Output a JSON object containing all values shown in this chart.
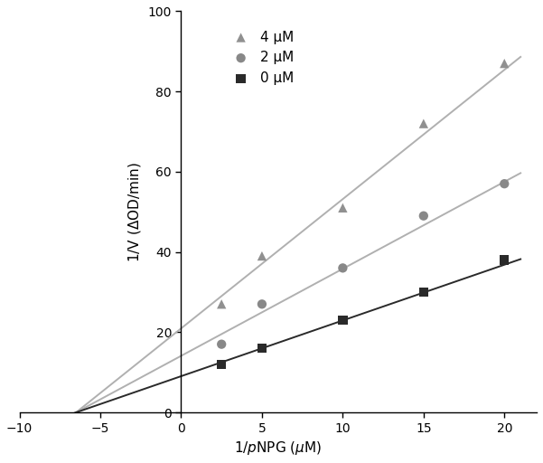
{
  "title": "",
  "xlim": [
    -10,
    22
  ],
  "ylim": [
    0,
    100
  ],
  "xticks": [
    -10,
    -5,
    0,
    5,
    10,
    15,
    20
  ],
  "yticks": [
    0,
    20,
    40,
    60,
    80,
    100
  ],
  "convergence_x": -6.5,
  "series": [
    {
      "label": "4 μM",
      "x_data": [
        2.5,
        5,
        10,
        15,
        20
      ],
      "y_data": [
        27,
        39,
        51,
        72,
        87
      ],
      "marker": "^",
      "marker_color": "#909090",
      "marker_size": 55,
      "line_color": "#B0B0B0",
      "line_width": 1.4
    },
    {
      "label": "2 μM",
      "x_data": [
        2.5,
        5,
        10,
        15,
        20
      ],
      "y_data": [
        17,
        27,
        36,
        49,
        57
      ],
      "marker": "o",
      "marker_color": "#888888",
      "marker_size": 55,
      "line_color": "#B0B0B0",
      "line_width": 1.4
    },
    {
      "label": "0 μM",
      "x_data": [
        2.5,
        5,
        10,
        15,
        20
      ],
      "y_data": [
        12,
        16,
        23,
        30,
        38
      ],
      "marker": "s",
      "marker_color": "#2a2a2a",
      "marker_size": 55,
      "line_color": "#2a2a2a",
      "line_width": 1.4
    }
  ],
  "background_color": "#ffffff"
}
